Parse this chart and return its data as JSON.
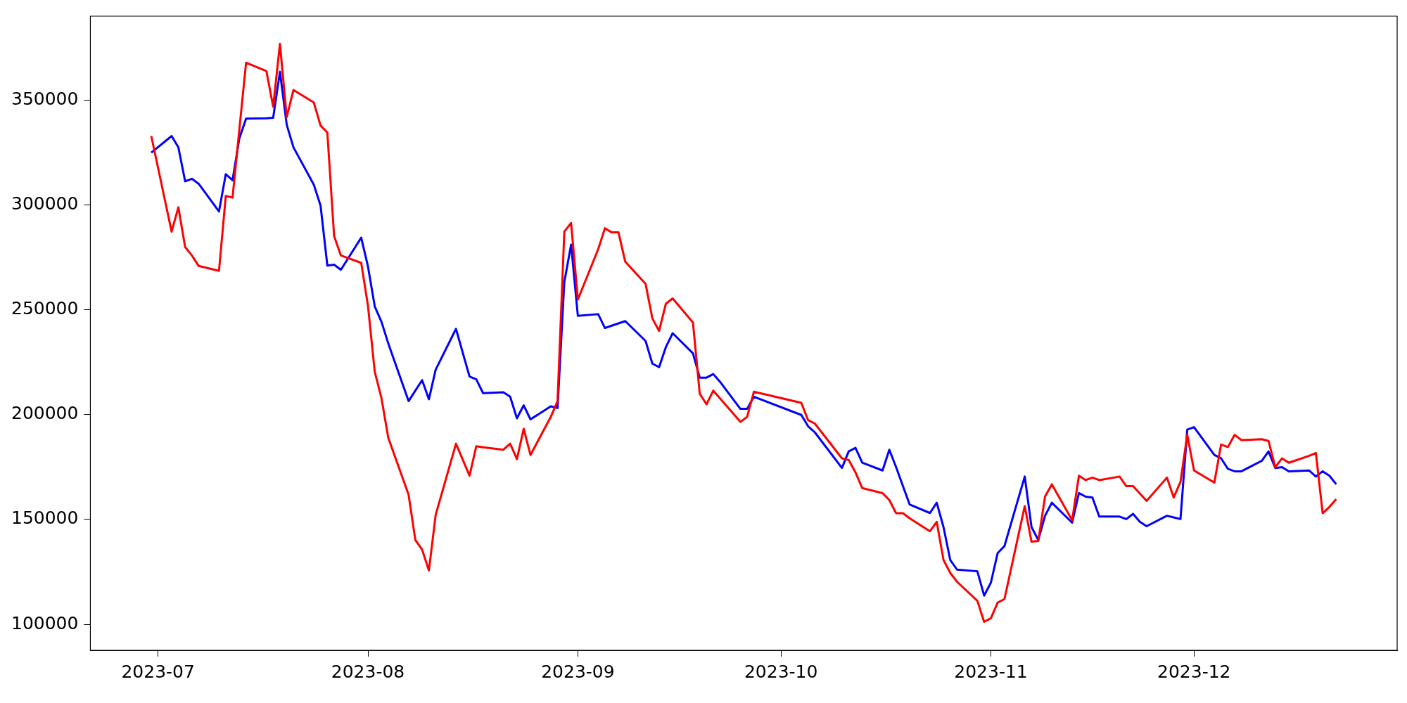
{
  "chart_data": {
    "type": "line",
    "grid": false,
    "legend": false,
    "marker": "none",
    "line_style": "solid",
    "x": [
      "2023-06-30",
      "2023-07-03",
      "2023-07-04",
      "2023-07-05",
      "2023-07-06",
      "2023-07-07",
      "2023-07-10",
      "2023-07-11",
      "2023-07-12",
      "2023-07-13",
      "2023-07-14",
      "2023-07-17",
      "2023-07-18",
      "2023-07-19",
      "2023-07-20",
      "2023-07-21",
      "2023-07-24",
      "2023-07-25",
      "2023-07-26",
      "2023-07-27",
      "2023-07-28",
      "2023-07-31",
      "2023-08-01",
      "2023-08-02",
      "2023-08-03",
      "2023-08-04",
      "2023-08-07",
      "2023-08-08",
      "2023-08-09",
      "2023-08-10",
      "2023-08-11",
      "2023-08-14",
      "2023-08-16",
      "2023-08-17",
      "2023-08-18",
      "2023-08-21",
      "2023-08-22",
      "2023-08-23",
      "2023-08-24",
      "2023-08-25",
      "2023-08-28",
      "2023-08-29",
      "2023-08-30",
      "2023-08-31",
      "2023-09-01",
      "2023-09-04",
      "2023-09-05",
      "2023-09-06",
      "2023-09-07",
      "2023-09-08",
      "2023-09-11",
      "2023-09-12",
      "2023-09-13",
      "2023-09-14",
      "2023-09-15",
      "2023-09-18",
      "2023-09-19",
      "2023-09-20",
      "2023-09-21",
      "2023-09-22",
      "2023-09-25",
      "2023-09-26",
      "2023-09-27",
      "2023-10-04",
      "2023-10-05",
      "2023-10-06",
      "2023-10-10",
      "2023-10-11",
      "2023-10-12",
      "2023-10-13",
      "2023-10-16",
      "2023-10-17",
      "2023-10-18",
      "2023-10-19",
      "2023-10-20",
      "2023-10-23",
      "2023-10-24",
      "2023-10-25",
      "2023-10-26",
      "2023-10-27",
      "2023-10-30",
      "2023-10-31",
      "2023-11-01",
      "2023-11-02",
      "2023-11-03",
      "2023-11-06",
      "2023-11-07",
      "2023-11-08",
      "2023-11-09",
      "2023-11-10",
      "2023-11-13",
      "2023-11-14",
      "2023-11-15",
      "2023-11-16",
      "2023-11-17",
      "2023-11-20",
      "2023-11-21",
      "2023-11-22",
      "2023-11-23",
      "2023-11-24",
      "2023-11-27",
      "2023-11-28",
      "2023-11-29",
      "2023-11-30",
      "2023-12-01",
      "2023-12-04",
      "2023-12-05",
      "2023-12-06",
      "2023-12-07",
      "2023-12-08",
      "2023-12-11",
      "2023-12-12",
      "2023-12-13",
      "2023-12-14",
      "2023-12-15",
      "2023-12-18",
      "2023-12-19",
      "2023-12-20",
      "2023-12-21",
      "2023-12-22"
    ],
    "series": [
      {
        "color": "#ff0000",
        "values": [
          333000,
          287400,
          299000,
          280000,
          276000,
          271000,
          268700,
          304400,
          303600,
          336000,
          368000,
          364000,
          347000,
          377000,
          342000,
          355000,
          349000,
          338000,
          334700,
          285300,
          276000,
          272500,
          252000,
          220600,
          207800,
          189000,
          161800,
          140200,
          135600,
          125700,
          152200,
          186200,
          170900,
          185000,
          184500,
          183300,
          186200,
          178800,
          193300,
          180800,
          199000,
          206500,
          287400,
          291500,
          255000,
          279000,
          289000,
          287000,
          287000,
          273000,
          262500,
          246000,
          240000,
          253000,
          255500,
          244000,
          210000,
          205000,
          211500,
          207800,
          196600,
          199000,
          211000,
          205700,
          197400,
          195800,
          179200,
          178400,
          172500,
          165000,
          162600,
          159300,
          153000,
          153000,
          150600,
          144400,
          148900,
          130700,
          124500,
          120300,
          111200,
          101200,
          102900,
          110400,
          112000,
          156400,
          139400,
          139800,
          161000,
          166800,
          149700,
          170900,
          168800,
          170000,
          168800,
          170500,
          165900,
          165900,
          162400,
          158900,
          170000,
          160500,
          168000,
          190400,
          173400,
          167600,
          185800,
          184600,
          190400,
          187900,
          188300,
          187500,
          175000,
          179200,
          177100,
          180400,
          181700,
          153000,
          156000,
          159700
        ]
      },
      {
        "color": "#0000ff",
        "values": [
          325100,
          333000,
          327600,
          311400,
          312600,
          310200,
          297000,
          314800,
          311900,
          331800,
          341300,
          341500,
          341700,
          363700,
          338400,
          327600,
          309800,
          299800,
          271200,
          271600,
          269200,
          284500,
          270800,
          251700,
          244300,
          234000,
          206500,
          211500,
          216500,
          207400,
          221500,
          241000,
          218200,
          216900,
          210300,
          210700,
          208600,
          198300,
          204500,
          197800,
          204000,
          203200,
          263300,
          281200,
          247200,
          248000,
          241400,
          242500,
          243600,
          244700,
          235200,
          224400,
          222700,
          232300,
          238900,
          229300,
          217700,
          217700,
          219400,
          215700,
          202800,
          202800,
          208600,
          199900,
          194500,
          191600,
          174600,
          182500,
          184200,
          177100,
          173400,
          183300,
          175000,
          166000,
          157200,
          153100,
          158000,
          146400,
          130700,
          126100,
          125300,
          113700,
          119900,
          134000,
          137300,
          170500,
          146400,
          140200,
          151800,
          158000,
          148500,
          162600,
          160900,
          160500,
          151400,
          151400,
          150200,
          152700,
          148900,
          146800,
          151800,
          151000,
          150200,
          192900,
          194100,
          180800,
          179200,
          174200,
          173000,
          173000,
          178000,
          182500,
          174600,
          175000,
          173000,
          173400,
          170500,
          173000,
          170900,
          166800
        ]
      }
    ],
    "xlim": [
      "2023-06-21",
      "2023-12-31"
    ],
    "xticks": [
      {
        "value": "2023-07-01",
        "label": "2023-07"
      },
      {
        "value": "2023-08-01",
        "label": "2023-08"
      },
      {
        "value": "2023-09-01",
        "label": "2023-09"
      },
      {
        "value": "2023-10-01",
        "label": "2023-10"
      },
      {
        "value": "2023-11-01",
        "label": "2023-11"
      },
      {
        "value": "2023-12-01",
        "label": "2023-12"
      }
    ],
    "ylim": [
      87600,
      390200
    ],
    "yticks": [
      100000,
      150000,
      200000,
      250000,
      300000,
      350000
    ]
  }
}
